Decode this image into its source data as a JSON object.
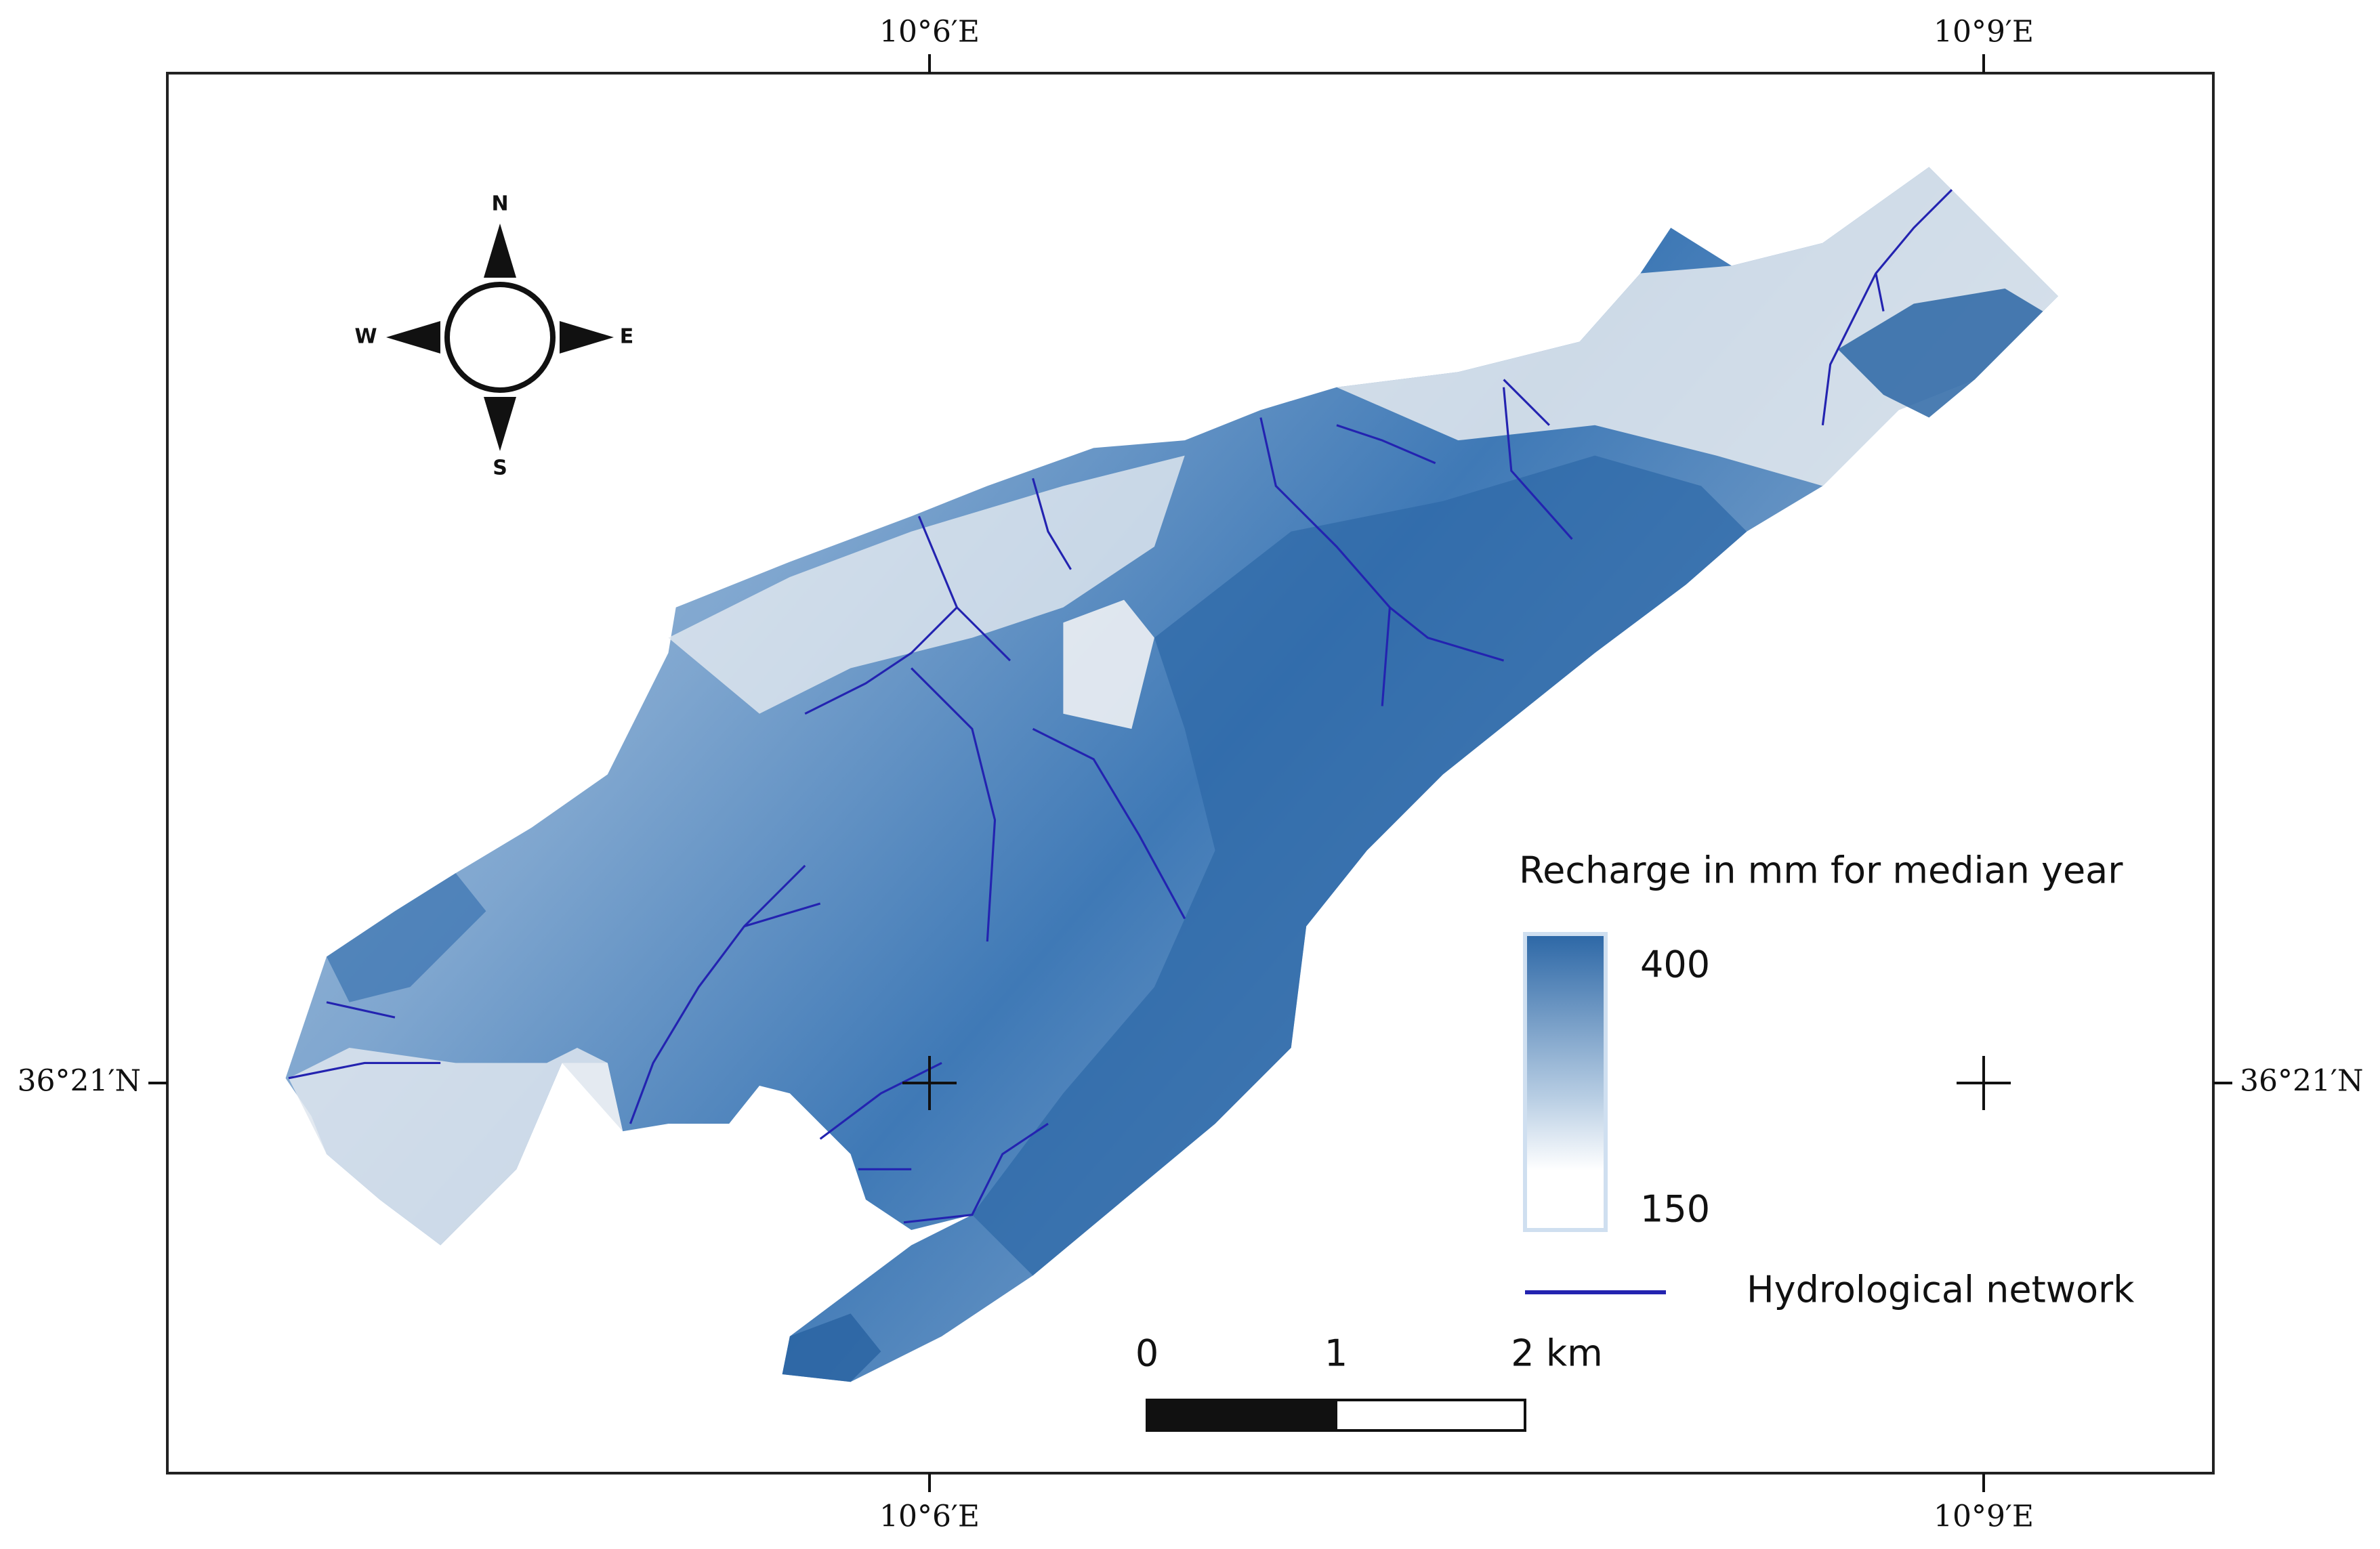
{
  "axes": {
    "top": [
      "10°6′E",
      "10°9′E"
    ],
    "bottom": [
      "10°6′E",
      "10°9′E"
    ],
    "left": "36°21′N",
    "right": "36°21′N"
  },
  "compass": {
    "north": "N",
    "east": "E",
    "south": "S",
    "west": "W"
  },
  "legend": {
    "title": "Recharge in mm for median year",
    "max": 400,
    "min": 150,
    "line_label": "Hydrological network"
  },
  "scale_bar": {
    "labels": [
      "0",
      "1",
      "2 km"
    ]
  }
}
